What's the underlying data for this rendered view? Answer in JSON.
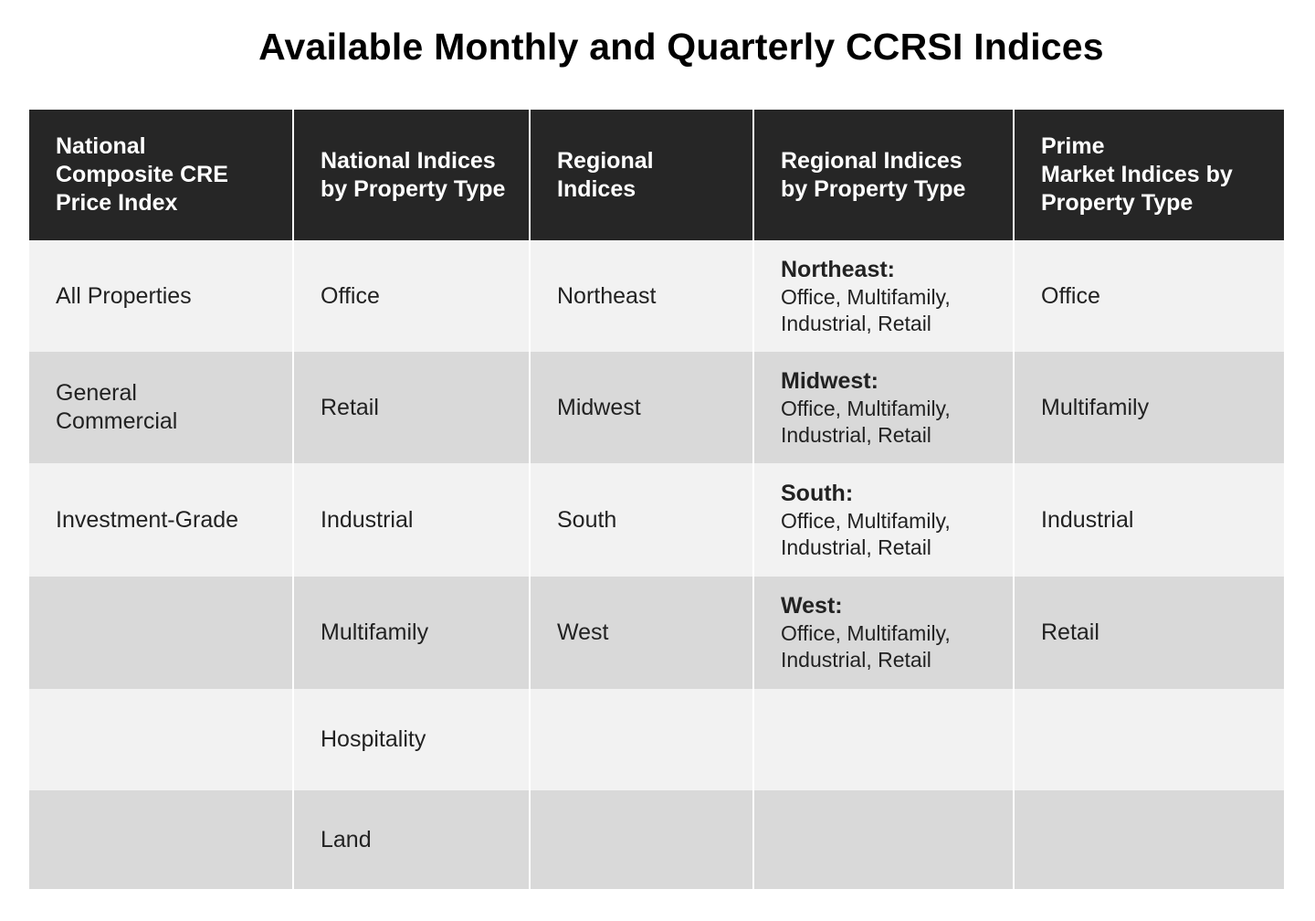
{
  "title": "Available Monthly and Quarterly CCRSI Indices",
  "headers": [
    "National\nComposite CRE\nPrice Index",
    "National Indices\nby Property Type",
    "Regional\nIndices",
    "Regional Indices\nby Property Type",
    "Prime\nMarket Indices by\nProperty Type"
  ],
  "rows": [
    {
      "national_composite": "All Properties",
      "national_by_type": "Office",
      "regional": "Northeast",
      "regional_by_type": {
        "region": "Northeast:",
        "types": "Office, Multifamily, Industrial, Retail"
      },
      "prime_market": "Office"
    },
    {
      "national_composite": "General Commercial",
      "national_by_type": "Retail",
      "regional": "Midwest",
      "regional_by_type": {
        "region": "Midwest:",
        "types": "Office, Multifamily, Industrial, Retail"
      },
      "prime_market": "Multifamily"
    },
    {
      "national_composite": "Investment-Grade",
      "national_by_type": "Industrial",
      "regional": "South",
      "regional_by_type": {
        "region": "South:",
        "types": "Office, Multifamily, Industrial, Retail"
      },
      "prime_market": "Industrial"
    },
    {
      "national_composite": "",
      "national_by_type": "Multifamily",
      "regional": "West",
      "regional_by_type": {
        "region": "West:",
        "types": "Office, Multifamily, Industrial, Retail"
      },
      "prime_market": "Retail"
    },
    {
      "national_composite": "",
      "national_by_type": "Hospitality",
      "regional": "",
      "regional_by_type": {
        "region": "",
        "types": ""
      },
      "prime_market": ""
    },
    {
      "national_composite": "",
      "national_by_type": "Land",
      "regional": "",
      "regional_by_type": {
        "region": "",
        "types": ""
      },
      "prime_market": ""
    }
  ],
  "colors": {
    "header_bg": "#262626",
    "header_text": "#ffffff",
    "row_light": "#f2f2f2",
    "row_dark": "#d9d9d9"
  }
}
